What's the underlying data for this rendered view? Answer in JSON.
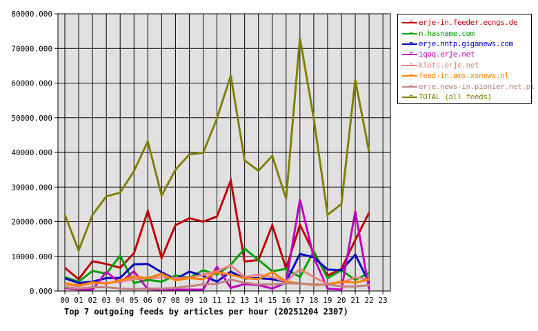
{
  "chart_data": {
    "type": "line",
    "title": "Top 7 outgoing feeds by articles per hour (20251204 2307)",
    "xlabel": "",
    "ylabel": "",
    "ylim": [
      0,
      80000
    ],
    "grid": true,
    "legend_position": "right",
    "x": [
      "00",
      "01",
      "02",
      "03",
      "04",
      "05",
      "06",
      "07",
      "08",
      "09",
      "10",
      "11",
      "12",
      "13",
      "14",
      "15",
      "16",
      "17",
      "18",
      "19",
      "20",
      "21",
      "22",
      "23"
    ],
    "y_ticks": [
      "0.000",
      "10000.000",
      "20000.000",
      "30000.000",
      "40000.000",
      "50000.000",
      "60000.000",
      "70000.000",
      "80000.000"
    ],
    "series": [
      {
        "name": "erje-in.feeder.ecngs.de",
        "color": "#c00000",
        "values": [
          6700,
          3400,
          8600,
          7800,
          6700,
          10900,
          23100,
          9500,
          19000,
          21000,
          20000,
          21500,
          31900,
          8500,
          8900,
          19000,
          6500,
          19100,
          11000,
          4500,
          6400,
          14700,
          22600
        ]
      },
      {
        "name": "n.hasname.com",
        "color": "#00a000",
        "values": [
          4000,
          2700,
          5800,
          5000,
          10200,
          2300,
          3200,
          2700,
          4500,
          3800,
          6000,
          4700,
          7600,
          12200,
          9000,
          5700,
          6400,
          4000,
          11500,
          3700,
          6000,
          3200,
          5200
        ]
      },
      {
        "name": "erje.nntp.giganews.com",
        "color": "#0000c0",
        "values": [
          3700,
          2300,
          2700,
          3700,
          3800,
          7700,
          7800,
          5400,
          3400,
          5600,
          4400,
          2700,
          5600,
          3600,
          3700,
          3400,
          2700,
          10700,
          9700,
          6200,
          6000,
          10500,
          2400
        ]
      },
      {
        "name": "iqoq.erje.net",
        "color": "#c000c0",
        "values": [
          900,
          400,
          400,
          5500,
          2400,
          5700,
          500,
          400,
          400,
          400,
          400,
          7000,
          900,
          2000,
          1700,
          700,
          2400,
          26400,
          9700,
          700,
          400,
          23000,
          500
        ]
      },
      {
        "name": "klots.erje.net",
        "color": "#f08080",
        "values": [
          1900,
          1400,
          2300,
          2300,
          2700,
          3400,
          3700,
          4000,
          3700,
          3800,
          4700,
          5700,
          7400,
          4000,
          4700,
          4000,
          2700,
          6400,
          4000,
          2100,
          2400,
          3900,
          3300
        ]
      },
      {
        "name": "feed-in.ams.xsnews.nl",
        "color": "#ff8000",
        "values": [
          2300,
          1600,
          2500,
          2100,
          3100,
          4200,
          3700,
          5000,
          3100,
          3700,
          3400,
          5400,
          4700,
          3700,
          3400,
          5500,
          2700,
          2200,
          1700,
          1900,
          2700,
          2400,
          3400
        ]
      },
      {
        "name": "erje.news-in.pionier.net.pl",
        "color": "#c08080",
        "values": [
          1100,
          700,
          1100,
          1100,
          700,
          500,
          700,
          700,
          900,
          1400,
          1900,
          2100,
          3300,
          2400,
          1900,
          1900,
          2200,
          2200,
          1900,
          1900,
          1300,
          1300,
          1700
        ]
      },
      {
        "name": "TOTAL (all feeds)",
        "color": "#808000",
        "values": [
          22000,
          11700,
          22000,
          27300,
          28400,
          34600,
          43200,
          27500,
          35000,
          39400,
          39900,
          49800,
          62200,
          37700,
          34700,
          39000,
          26600,
          73000,
          49800,
          22000,
          25100,
          60900,
          40200
        ]
      }
    ]
  },
  "legend": {
    "items": [
      {
        "label": "erje-in.feeder.ecngs.de",
        "color": "#c00000"
      },
      {
        "label": "n.hasname.com",
        "color": "#00a000"
      },
      {
        "label": "erje.nntp.giganews.com",
        "color": "#0000c0"
      },
      {
        "label": "iqoq.erje.net",
        "color": "#c000c0"
      },
      {
        "label": "klots.erje.net",
        "color": "#f08080"
      },
      {
        "label": "feed-in.ams.xsnews.nl",
        "color": "#ff8000"
      },
      {
        "label": "erje.news-in.pionier.net.pl",
        "color": "#c08080"
      },
      {
        "label": "TOTAL (all feeds)",
        "color": "#808000"
      }
    ]
  }
}
